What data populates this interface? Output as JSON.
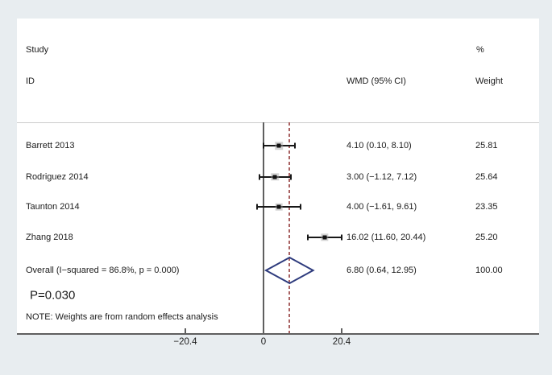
{
  "header": {
    "study": "Study",
    "id": "ID",
    "wmd_ci": "WMD (95% CI)",
    "percent": "%",
    "weight": "Weight"
  },
  "chart_data": {
    "type": "forest",
    "title": "",
    "xlabel": "",
    "effect_measure": "WMD (95% CI)",
    "axis": {
      "ticks": [
        -20.4,
        0,
        20.4
      ],
      "tick_labels": [
        "−20.4",
        "0",
        "20.4"
      ],
      "xlim": [
        -25,
        27
      ]
    },
    "null_line": 0,
    "overall_effect_line": 6.8,
    "studies": [
      {
        "id": "Barrett 2013",
        "wmd": 4.1,
        "ci_low": 0.1,
        "ci_high": 8.1,
        "estimate_label": "4.10 (0.10, 8.10)",
        "weight": "25.81"
      },
      {
        "id": "Rodriguez 2014",
        "wmd": 3.0,
        "ci_low": -1.12,
        "ci_high": 7.12,
        "estimate_label": "3.00 (−1.12, 7.12)",
        "weight": "25.64"
      },
      {
        "id": "Taunton 2014",
        "wmd": 4.0,
        "ci_low": -1.61,
        "ci_high": 9.61,
        "estimate_label": "4.00 (−1.61, 9.61)",
        "weight": "23.35"
      },
      {
        "id": "Zhang 2018",
        "wmd": 16.02,
        "ci_low": 11.6,
        "ci_high": 20.44,
        "estimate_label": "16.02 (11.60, 20.44)",
        "weight": "25.20"
      }
    ],
    "overall": {
      "id": "Overall  (I−squared = 86.8%, p = 0.000)",
      "wmd": 6.8,
      "ci_low": 0.64,
      "ci_high": 12.95,
      "estimate_label": "6.80 (0.64, 12.95)",
      "weight": "100.00"
    },
    "p_value_label": "P=0.030",
    "note": "NOTE: Weights are from random effects analysis",
    "legend": null,
    "grid": false
  },
  "colors": {
    "page_background": "#e8edf0",
    "plot_background": "#ffffff",
    "axis_line": "#5f5f5f",
    "separator_line": "#cccccc",
    "null_line": "#5f5f5f",
    "dashed_overall_line": "#a96262",
    "diamond_outline": "#2e3b7d",
    "ci_line": "#181818",
    "marker_point": "#111111",
    "marker_weight_box": "#a0a0a0",
    "text": "#1b1b1b"
  }
}
